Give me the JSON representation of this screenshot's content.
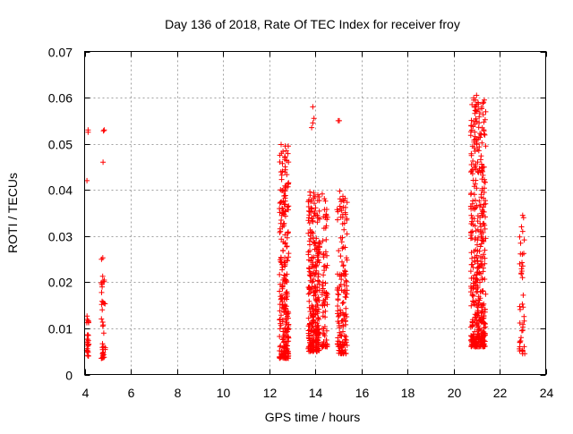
{
  "chart_data": {
    "type": "scatter",
    "title": "Day 136 of 2018, Rate Of TEC Index for receiver froy",
    "xlabel": "GPS time / hours",
    "ylabel": "ROTI / TECUs",
    "xlim": [
      4,
      24
    ],
    "ylim": [
      0,
      0.07
    ],
    "xticks": [
      4,
      6,
      8,
      10,
      12,
      14,
      16,
      18,
      20,
      22,
      24
    ],
    "yticks": [
      0,
      0.01,
      0.02,
      0.03,
      0.04,
      0.05,
      0.06,
      0.07
    ],
    "xtick_labels": [
      "4",
      "6",
      "8",
      "10",
      "12",
      "14",
      "16",
      "18",
      "20",
      "22",
      "24"
    ],
    "ytick_labels": [
      "0",
      "0.01",
      "0.02",
      "0.03",
      "0.04",
      "0.05",
      "0.06",
      "0.07"
    ],
    "grid": true,
    "marker": "+",
    "marker_color": "#ff0000",
    "series": [
      {
        "name": "ROTI",
        "clusters": [
          {
            "x": [
              4.08,
              4.18
            ],
            "y": [
              0.004,
              0.014
            ],
            "n": 26,
            "outliers": [
              [
                4.15,
                0.0525
              ],
              [
                4.15,
                0.053
              ],
              [
                4.1,
                0.042
              ]
            ]
          },
          {
            "x": [
              4.72,
              4.9
            ],
            "y": [
              0.0035,
              0.026
            ],
            "n": 38,
            "outliers": [
              [
                4.82,
                0.0528
              ],
              [
                4.8,
                0.046
              ],
              [
                4.85,
                0.053
              ]
            ]
          },
          {
            "x": [
              12.45,
              12.85
            ],
            "y": [
              0.0035,
              0.05
            ],
            "n": 260,
            "outliers": [
              [
                12.7,
                0.0495
              ],
              [
                12.75,
                0.0485
              ],
              [
                12.7,
                0.045
              ]
            ]
          },
          {
            "x": [
              13.7,
              14.2
            ],
            "y": [
              0.005,
              0.04
            ],
            "n": 280,
            "outliers": [
              [
                13.9,
                0.058
              ],
              [
                13.95,
                0.0555
              ],
              [
                13.85,
                0.0535
              ],
              [
                13.9,
                0.0545
              ]
            ]
          },
          {
            "x": [
              14.3,
              14.55
            ],
            "y": [
              0.006,
              0.041
            ],
            "n": 80,
            "outliers": []
          },
          {
            "x": [
              14.95,
              15.4
            ],
            "y": [
              0.0045,
              0.04
            ],
            "n": 150,
            "outliers": [
              [
                15.0,
                0.055
              ],
              [
                15.05,
                0.055
              ]
            ]
          },
          {
            "x": [
              20.75,
              21.4
            ],
            "y": [
              0.006,
              0.06
            ],
            "n": 420,
            "outliers": [
              [
                21.0,
                0.0605
              ],
              [
                20.95,
                0.0595
              ],
              [
                21.0,
                0.057
              ],
              [
                21.2,
                0.052
              ],
              [
                21.1,
                0.0485
              ]
            ]
          },
          {
            "x": [
              22.85,
              23.1
            ],
            "y": [
              0.0045,
              0.035
            ],
            "n": 40,
            "outliers": [
              [
                23.0,
                0.0345
              ],
              [
                22.95,
                0.032
              ],
              [
                23.0,
                0.031
              ]
            ]
          }
        ]
      }
    ]
  }
}
